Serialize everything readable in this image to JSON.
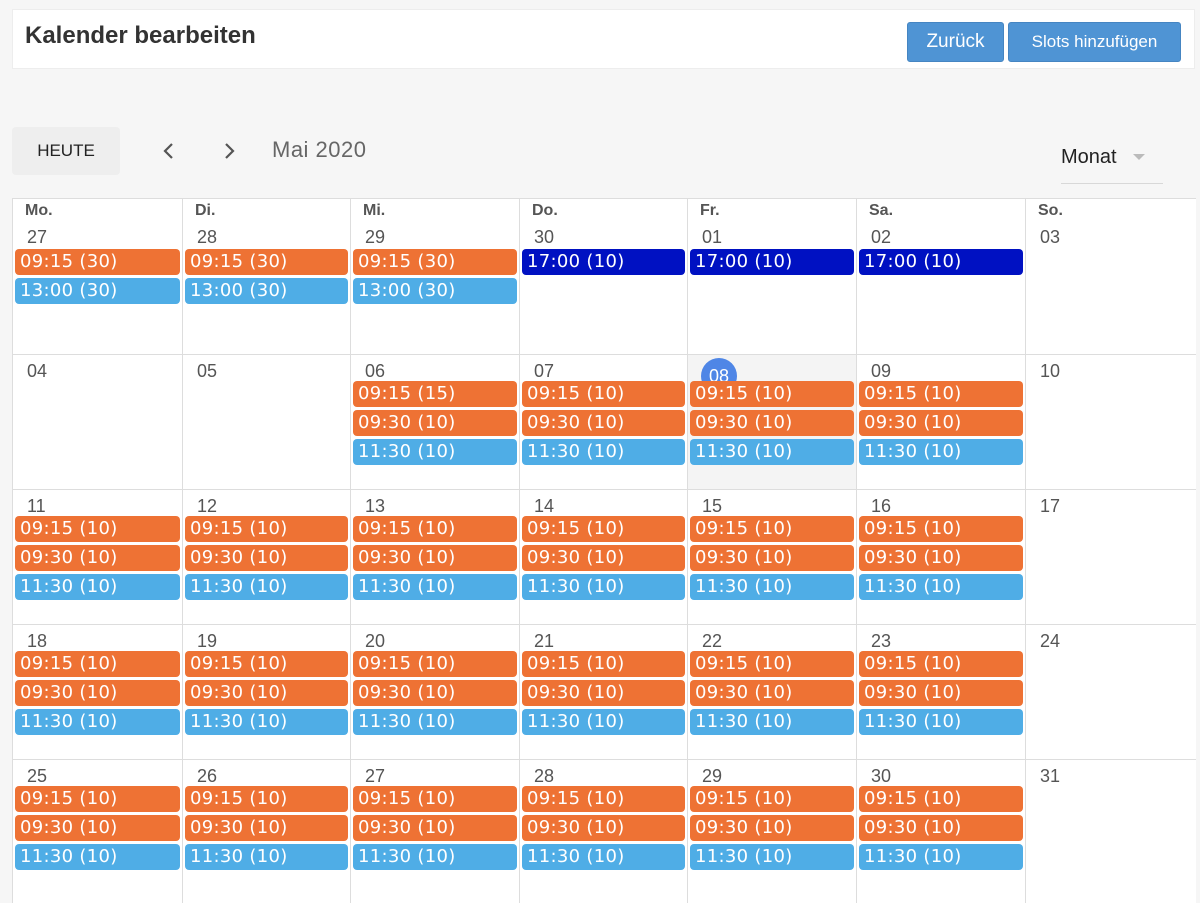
{
  "header": {
    "title": "Kalender bearbeiten",
    "back_label": "Zurück",
    "add_slots_label": "Slots hinzufügen"
  },
  "toolbar": {
    "today_label": "HEUTE",
    "prev_icon": "chevron-left-icon",
    "next_icon": "chevron-right-icon",
    "month_label": "Mai 2020",
    "view_value": "Monat"
  },
  "colors": {
    "orange": "#ee7234",
    "blue": "#4fade6",
    "navy": "#0011c2",
    "today_badge": "#4f86e6",
    "button": "#4f94d4"
  },
  "calendar": {
    "weekdays": [
      "Mo.",
      "Di.",
      "Mi.",
      "Do.",
      "Fr.",
      "Sa.",
      "So."
    ],
    "weeks": [
      {
        "days": [
          {
            "num": "27",
            "events": [
              {
                "label": "09:15 (30)",
                "color": "orange"
              },
              {
                "label": "13:00 (30)",
                "color": "blue"
              }
            ]
          },
          {
            "num": "28",
            "events": [
              {
                "label": "09:15 (30)",
                "color": "orange"
              },
              {
                "label": "13:00 (30)",
                "color": "blue"
              }
            ]
          },
          {
            "num": "29",
            "events": [
              {
                "label": "09:15 (30)",
                "color": "orange"
              },
              {
                "label": "13:00 (30)",
                "color": "blue"
              }
            ]
          },
          {
            "num": "30",
            "events": [
              {
                "label": "17:00 (10)",
                "color": "navy"
              }
            ]
          },
          {
            "num": "01",
            "events": [
              {
                "label": "17:00 (10)",
                "color": "navy"
              }
            ]
          },
          {
            "num": "02",
            "events": [
              {
                "label": "17:00 (10)",
                "color": "navy"
              }
            ]
          },
          {
            "num": "03",
            "events": []
          }
        ]
      },
      {
        "days": [
          {
            "num": "04",
            "events": []
          },
          {
            "num": "05",
            "events": []
          },
          {
            "num": "06",
            "events": [
              {
                "label": "09:15 (15)",
                "color": "orange"
              },
              {
                "label": "09:30 (10)",
                "color": "orange"
              },
              {
                "label": "11:30 (10)",
                "color": "blue"
              }
            ]
          },
          {
            "num": "07",
            "events": [
              {
                "label": "09:15 (10)",
                "color": "orange"
              },
              {
                "label": "09:30 (10)",
                "color": "orange"
              },
              {
                "label": "11:30 (10)",
                "color": "blue"
              }
            ]
          },
          {
            "num": "08",
            "today": true,
            "events": [
              {
                "label": "09:15 (10)",
                "color": "orange"
              },
              {
                "label": "09:30 (10)",
                "color": "orange"
              },
              {
                "label": "11:30 (10)",
                "color": "blue"
              }
            ]
          },
          {
            "num": "09",
            "events": [
              {
                "label": "09:15 (10)",
                "color": "orange"
              },
              {
                "label": "09:30 (10)",
                "color": "orange"
              },
              {
                "label": "11:30 (10)",
                "color": "blue"
              }
            ]
          },
          {
            "num": "10",
            "events": []
          }
        ]
      },
      {
        "days": [
          {
            "num": "11",
            "events": [
              {
                "label": "09:15 (10)",
                "color": "orange"
              },
              {
                "label": "09:30 (10)",
                "color": "orange"
              },
              {
                "label": "11:30 (10)",
                "color": "blue"
              }
            ]
          },
          {
            "num": "12",
            "events": [
              {
                "label": "09:15 (10)",
                "color": "orange"
              },
              {
                "label": "09:30 (10)",
                "color": "orange"
              },
              {
                "label": "11:30 (10)",
                "color": "blue"
              }
            ]
          },
          {
            "num": "13",
            "events": [
              {
                "label": "09:15 (10)",
                "color": "orange"
              },
              {
                "label": "09:30 (10)",
                "color": "orange"
              },
              {
                "label": "11:30 (10)",
                "color": "blue"
              }
            ]
          },
          {
            "num": "14",
            "events": [
              {
                "label": "09:15 (10)",
                "color": "orange"
              },
              {
                "label": "09:30 (10)",
                "color": "orange"
              },
              {
                "label": "11:30 (10)",
                "color": "blue"
              }
            ]
          },
          {
            "num": "15",
            "events": [
              {
                "label": "09:15 (10)",
                "color": "orange"
              },
              {
                "label": "09:30 (10)",
                "color": "orange"
              },
              {
                "label": "11:30 (10)",
                "color": "blue"
              }
            ]
          },
          {
            "num": "16",
            "events": [
              {
                "label": "09:15 (10)",
                "color": "orange"
              },
              {
                "label": "09:30 (10)",
                "color": "orange"
              },
              {
                "label": "11:30 (10)",
                "color": "blue"
              }
            ]
          },
          {
            "num": "17",
            "events": []
          }
        ]
      },
      {
        "days": [
          {
            "num": "18",
            "events": [
              {
                "label": "09:15 (10)",
                "color": "orange"
              },
              {
                "label": "09:30 (10)",
                "color": "orange"
              },
              {
                "label": "11:30 (10)",
                "color": "blue"
              }
            ]
          },
          {
            "num": "19",
            "events": [
              {
                "label": "09:15 (10)",
                "color": "orange"
              },
              {
                "label": "09:30 (10)",
                "color": "orange"
              },
              {
                "label": "11:30 (10)",
                "color": "blue"
              }
            ]
          },
          {
            "num": "20",
            "events": [
              {
                "label": "09:15 (10)",
                "color": "orange"
              },
              {
                "label": "09:30 (10)",
                "color": "orange"
              },
              {
                "label": "11:30 (10)",
                "color": "blue"
              }
            ]
          },
          {
            "num": "21",
            "events": [
              {
                "label": "09:15 (10)",
                "color": "orange"
              },
              {
                "label": "09:30 (10)",
                "color": "orange"
              },
              {
                "label": "11:30 (10)",
                "color": "blue"
              }
            ]
          },
          {
            "num": "22",
            "events": [
              {
                "label": "09:15 (10)",
                "color": "orange"
              },
              {
                "label": "09:30 (10)",
                "color": "orange"
              },
              {
                "label": "11:30 (10)",
                "color": "blue"
              }
            ]
          },
          {
            "num": "23",
            "events": [
              {
                "label": "09:15 (10)",
                "color": "orange"
              },
              {
                "label": "09:30 (10)",
                "color": "orange"
              },
              {
                "label": "11:30 (10)",
                "color": "blue"
              }
            ]
          },
          {
            "num": "24",
            "events": []
          }
        ]
      },
      {
        "days": [
          {
            "num": "25",
            "events": [
              {
                "label": "09:15 (10)",
                "color": "orange"
              },
              {
                "label": "09:30 (10)",
                "color": "orange"
              },
              {
                "label": "11:30 (10)",
                "color": "blue"
              }
            ]
          },
          {
            "num": "26",
            "events": [
              {
                "label": "09:15 (10)",
                "color": "orange"
              },
              {
                "label": "09:30 (10)",
                "color": "orange"
              },
              {
                "label": "11:30 (10)",
                "color": "blue"
              }
            ]
          },
          {
            "num": "27",
            "events": [
              {
                "label": "09:15 (10)",
                "color": "orange"
              },
              {
                "label": "09:30 (10)",
                "color": "orange"
              },
              {
                "label": "11:30 (10)",
                "color": "blue"
              }
            ]
          },
          {
            "num": "28",
            "events": [
              {
                "label": "09:15 (10)",
                "color": "orange"
              },
              {
                "label": "09:30 (10)",
                "color": "orange"
              },
              {
                "label": "11:30 (10)",
                "color": "blue"
              }
            ]
          },
          {
            "num": "29",
            "events": [
              {
                "label": "09:15 (10)",
                "color": "orange"
              },
              {
                "label": "09:30 (10)",
                "color": "orange"
              },
              {
                "label": "11:30 (10)",
                "color": "blue"
              }
            ]
          },
          {
            "num": "30",
            "events": [
              {
                "label": "09:15 (10)",
                "color": "orange"
              },
              {
                "label": "09:30 (10)",
                "color": "orange"
              },
              {
                "label": "11:30 (10)",
                "color": "blue"
              }
            ]
          },
          {
            "num": "31",
            "events": []
          }
        ]
      }
    ]
  }
}
